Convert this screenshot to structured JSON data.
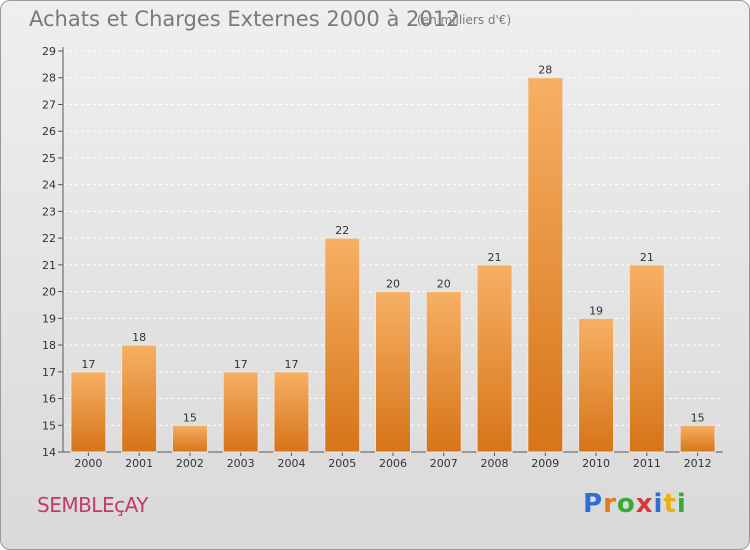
{
  "title": "Achats et Charges Externes 2000 à 2012",
  "subtitle": "(en milliers d'€)",
  "commune": "SEMBLEçAY",
  "logo": {
    "letters": [
      "P",
      "r",
      "o",
      "x",
      "i",
      "t",
      "i"
    ],
    "colors": [
      "#2e6fd1",
      "#e07b1a",
      "#3aa935",
      "#d63a3a",
      "#2e6fd1",
      "#e8b10e",
      "#3aa935"
    ]
  },
  "colors": {
    "bar": "#f0923a",
    "bar_light": "#f7b064",
    "bar_dark": "#d67418"
  },
  "chart_data": {
    "type": "bar",
    "categories": [
      "2000",
      "2001",
      "2002",
      "2003",
      "2004",
      "2005",
      "2006",
      "2007",
      "2008",
      "2009",
      "2010",
      "2011",
      "2012"
    ],
    "values": [
      17,
      18,
      15,
      17,
      17,
      22,
      20,
      20,
      21,
      28,
      19,
      21,
      15
    ],
    "ylim": [
      14,
      29
    ],
    "yticks": [
      14,
      15,
      16,
      17,
      18,
      19,
      20,
      21,
      22,
      23,
      24,
      25,
      26,
      27,
      28,
      29
    ],
    "grid": true,
    "xlabel": "",
    "ylabel": ""
  }
}
